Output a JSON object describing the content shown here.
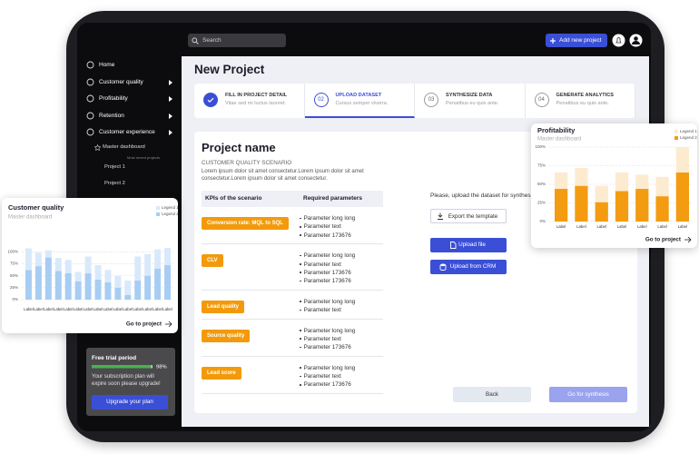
{
  "topbar": {
    "search_placeholder": "Search",
    "add_button": "Add new project"
  },
  "sidebar": {
    "items": [
      "Home",
      "Customer quality",
      "Profitability",
      "Retention",
      "Customer experience"
    ],
    "sub_item": "Master dashboard",
    "recent_label": "Most recent projects",
    "projects": [
      "Project 1",
      "Project 2"
    ]
  },
  "page_title": "New Project",
  "steps": [
    {
      "title": "FILL IN PROJECT DETAIL",
      "subtitle": "Vitae sed mi luctus laoreet."
    },
    {
      "number": "02",
      "title": "UPLOAD DATASET",
      "subtitle": "Cursus semper viverra."
    },
    {
      "number": "03",
      "title": "SYNTHESIZE DATA",
      "subtitle": "Penatibus eu quis ante."
    },
    {
      "number": "04",
      "title": "GENERATE ANALYTICS",
      "subtitle": "Penatibus eu quis ante."
    }
  ],
  "project": {
    "title": "Project name",
    "scenario": "CUSTOMER QUALITY SCENARIO",
    "description": "Lorem ipsum dolor sit amet consectetur.Lorem ipsum dolor sit amet consectetur.Lorem ipsum dolor sit amet consectetur.",
    "table": {
      "headers": [
        "KPIs of the scenario",
        "Required parameters"
      ],
      "rows": [
        {
          "kpi": "Conversion rate: MQL to SQL",
          "params": [
            "Parameter long long",
            "Parameter text",
            "Parameter 173676"
          ]
        },
        {
          "kpi": "CLV",
          "params": [
            "Parameter long long",
            "Parameter text",
            "Parameter 173676",
            "Parameter 173676"
          ]
        },
        {
          "kpi": "Lead quality",
          "params": [
            "Parameter long long",
            "Parameter text"
          ]
        },
        {
          "kpi": "Source quality",
          "params": [
            "Parameter long long",
            "Parameter text",
            "Parameter 173676"
          ]
        },
        {
          "kpi": "Lead score",
          "params": [
            "Parameter long long",
            "Parameter text",
            "Parameter 173676"
          ]
        }
      ]
    }
  },
  "upload": {
    "prompt": "Please, upload the dataset for synthesis",
    "export": "Export the template",
    "upload_file": "Upload file",
    "upload_crm": "Upload from CRM"
  },
  "actions": {
    "back": "Back",
    "next": "Go for synthesis"
  },
  "trial": {
    "title": "Free trial period",
    "progress": 98,
    "progress_label": "98%",
    "message": "Your subscription plan will expire soon please upgrade!",
    "button": "Upgrade your plan"
  },
  "chart_data": [
    {
      "type": "bar",
      "stacked": true,
      "title": "Customer quality",
      "subtitle": "Master dashboard",
      "categories": [
        "Label",
        "Label",
        "Label",
        "Label",
        "Label",
        "Label",
        "Label",
        "Label",
        "Label",
        "Label",
        "Label",
        "Label",
        "Label",
        "Label",
        "Label"
      ],
      "series": [
        {
          "name": "Legend 1",
          "color": "#d9e9fb",
          "values": [
            45,
            28,
            15,
            27,
            28,
            20,
            35,
            30,
            26,
            25,
            30,
            50,
            45,
            40,
            36
          ]
        },
        {
          "name": "Legend 2",
          "color": "#a7cdf3",
          "values": [
            62,
            70,
            88,
            60,
            55,
            38,
            55,
            42,
            36,
            25,
            10,
            40,
            50,
            65,
            72
          ]
        }
      ],
      "ylim": [
        0,
        110
      ],
      "yticks": [
        {
          "value": 0,
          "label": "0%"
        },
        {
          "value": 25,
          "label": "25%"
        },
        {
          "value": 50,
          "label": "50%"
        },
        {
          "value": 75,
          "label": "75%"
        },
        {
          "value": 100,
          "label": "100%"
        }
      ],
      "grid": true,
      "link": "Go to project"
    },
    {
      "type": "bar",
      "stacked": true,
      "title": "Profitability",
      "subtitle": "Master dashboard",
      "categories": [
        "Label",
        "Label",
        "Label",
        "Label",
        "Label",
        "Label",
        "Label"
      ],
      "series": [
        {
          "name": "Legend 1",
          "color": "#fdebd0",
          "values": [
            22,
            24,
            22,
            25,
            19,
            26,
            34
          ]
        },
        {
          "name": "Legend 2",
          "color": "#f39c12",
          "values": [
            44,
            48,
            26,
            41,
            44,
            34,
            66
          ]
        }
      ],
      "ylim": [
        0,
        100
      ],
      "yticks": [
        {
          "value": 0,
          "label": "0%"
        },
        {
          "value": 25,
          "label": "25%"
        },
        {
          "value": 50,
          "label": "50%"
        },
        {
          "value": 75,
          "label": "75%"
        },
        {
          "value": 100,
          "label": "100%"
        }
      ],
      "grid": true,
      "link": "Go to project"
    }
  ]
}
